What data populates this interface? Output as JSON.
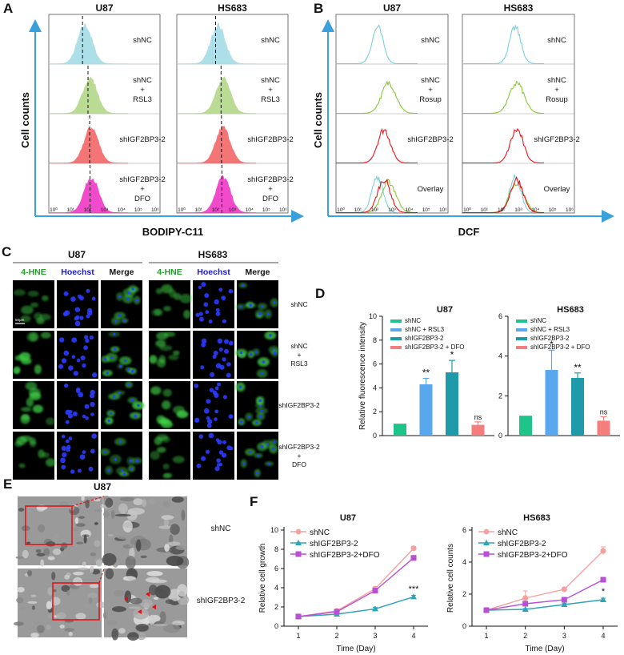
{
  "panels": {
    "A": {
      "letter": "A",
      "col_titles": [
        "U87",
        "HS683"
      ],
      "ylabel": "Cell counts",
      "xlabel": "BODIPY-C11",
      "ticks": [
        "10⁰",
        "10¹",
        "10²",
        "10³",
        "10⁴",
        "10⁵",
        "10⁶"
      ],
      "rows": [
        {
          "lines": [
            "shNC"
          ],
          "color": "#a6dde6"
        },
        {
          "lines": [
            "shNC",
            "+",
            "RSL3"
          ],
          "color": "#b5d98b"
        },
        {
          "lines": [
            "shIGF2BP3-2"
          ],
          "color": "#f36a6a"
        },
        {
          "lines": [
            "shIGF2BP3-2",
            "+",
            "DFO"
          ],
          "color": "#f03cc8"
        }
      ]
    },
    "B": {
      "letter": "B",
      "col_titles": [
        "U87",
        "HS683"
      ],
      "ylabel": "Cell counts",
      "xlabel": "DCF",
      "ticks": [
        "10⁰",
        "10¹",
        "10²",
        "10³",
        "10⁴",
        "10⁵",
        "10⁶"
      ],
      "rows": [
        {
          "lines": [
            "shNC"
          ]
        },
        {
          "lines": [
            "shNC",
            "+",
            "Rosup"
          ]
        },
        {
          "lines": [
            "shIGF2BP3-2"
          ]
        },
        {
          "lines": [
            "Overlay"
          ]
        }
      ],
      "colors": {
        "shNC": "#7ecfdc",
        "rosup": "#8cc63f",
        "sh": "#e8141c"
      }
    },
    "C": {
      "letter": "C",
      "groups": [
        {
          "title": "U87",
          "cols": [
            "4-HNE",
            "Hoechst",
            "Merge"
          ]
        },
        {
          "title": "HS683",
          "cols": [
            "4-HNE",
            "Hoechst",
            "Merge"
          ]
        }
      ],
      "scale_bar": "50μm",
      "rows": [
        {
          "lines": [
            "shNC"
          ]
        },
        {
          "lines": [
            "shNC",
            "+",
            "RSL3"
          ]
        },
        {
          "lines": [
            "shIGF2BP3-2"
          ]
        },
        {
          "lines": [
            "shIGF2BP3-2",
            "+",
            "DFO"
          ]
        }
      ],
      "col_colors": {
        "hne": "#22a02a",
        "hoechst": "#1a1ad8"
      }
    },
    "E": {
      "letter": "E",
      "title": "U87",
      "rows": [
        {
          "label": "shNC"
        },
        {
          "label": "shIGF2BP3-2"
        }
      ]
    }
  },
  "chart_data": [
    {
      "id": "D-U87",
      "letter": "D",
      "type": "bar",
      "title": "U87",
      "ylabel": "Relative fluorescence intensity",
      "ylim": [
        0,
        10
      ],
      "yticks": [
        "0",
        "2",
        "4",
        "6",
        "8",
        "10"
      ],
      "categories": [
        "shNC",
        "shNC + RSL3",
        "shIGF2BP3-2",
        "shIGF2BP3-2 + DFO"
      ],
      "values": [
        1.0,
        4.3,
        5.3,
        0.9
      ],
      "errors": [
        0.0,
        0.5,
        1.0,
        0.25
      ],
      "sig": [
        "",
        "**",
        "*",
        "ns"
      ],
      "colors": [
        "#1fc48a",
        "#5aa6ef",
        "#1e9aa8",
        "#f47e7e"
      ],
      "legend": "top"
    },
    {
      "id": "D-HS683",
      "type": "bar",
      "title": "HS683",
      "ylabel": "",
      "ylim": [
        0,
        6
      ],
      "yticks": [
        "0",
        "2",
        "4",
        "6"
      ],
      "categories": [
        "shNC",
        "shNC + RSL3",
        "shIGF2BP3-2",
        "shIGF2BP3-2 + DFO"
      ],
      "values": [
        1.0,
        3.3,
        2.9,
        0.75
      ],
      "errors": [
        0.0,
        1.0,
        0.25,
        0.2
      ],
      "sig": [
        "",
        "*",
        "**",
        "ns"
      ],
      "colors": [
        "#1fc48a",
        "#5aa6ef",
        "#1e9aa8",
        "#f47e7e"
      ],
      "legend": "top"
    },
    {
      "id": "F-U87",
      "letter": "F",
      "type": "line",
      "title": "U87",
      "xlabel": "Time (Day)",
      "ylabel": "Relative cell growth",
      "x": [
        1,
        2,
        3,
        4
      ],
      "xticks": [
        "1",
        "2",
        "3",
        "4"
      ],
      "ylim": [
        0,
        10
      ],
      "yticks": [
        "0",
        "2",
        "4",
        "6",
        "8",
        "10"
      ],
      "series": [
        {
          "name": "shNC",
          "values": [
            1.0,
            1.6,
            3.9,
            8.1
          ],
          "color": "#f4a0a0",
          "marker": "circle",
          "errors": [
            0.05,
            0.1,
            0.15,
            0.2
          ]
        },
        {
          "name": "shIGF2BP3-2",
          "values": [
            1.0,
            1.25,
            1.8,
            3.05
          ],
          "color": "#2aa4b8",
          "marker": "triangle",
          "errors": [
            0.05,
            0.1,
            0.15,
            0.15
          ]
        },
        {
          "name": "shIGF2BP3-2+DFO",
          "values": [
            1.0,
            1.5,
            3.7,
            7.1
          ],
          "color": "#b84fd4",
          "marker": "square",
          "errors": [
            0.05,
            0.1,
            0.15,
            0.25
          ]
        }
      ],
      "annotations": [
        {
          "text": "***",
          "x": 4,
          "y": 3.6
        }
      ],
      "legend": "top-left"
    },
    {
      "id": "F-HS683",
      "type": "line",
      "title": "HS683",
      "xlabel": "Time (Day)",
      "ylabel": "Relative cell counts",
      "x": [
        1,
        2,
        3,
        4
      ],
      "xticks": [
        "1",
        "2",
        "3",
        "4"
      ],
      "ylim": [
        0,
        6
      ],
      "yticks": [
        "0",
        "2",
        "4",
        "6"
      ],
      "series": [
        {
          "name": "shNC",
          "values": [
            1.0,
            1.75,
            2.3,
            4.7
          ],
          "color": "#f4a0a0",
          "marker": "circle",
          "errors": [
            0.05,
            0.45,
            0.1,
            0.25
          ]
        },
        {
          "name": "shIGF2BP3-2",
          "values": [
            1.0,
            1.05,
            1.35,
            1.65
          ],
          "color": "#2aa4b8",
          "marker": "triangle",
          "errors": [
            0.05,
            0.05,
            0.08,
            0.1
          ]
        },
        {
          "name": "shIGF2BP3-2+DFO",
          "values": [
            1.0,
            1.4,
            1.65,
            2.9
          ],
          "color": "#b84fd4",
          "marker": "square",
          "errors": [
            0.05,
            0.15,
            0.1,
            0.1
          ]
        }
      ],
      "annotations": [
        {
          "text": "*",
          "x": 4,
          "y": 2.0
        }
      ],
      "legend": "top-left"
    }
  ]
}
